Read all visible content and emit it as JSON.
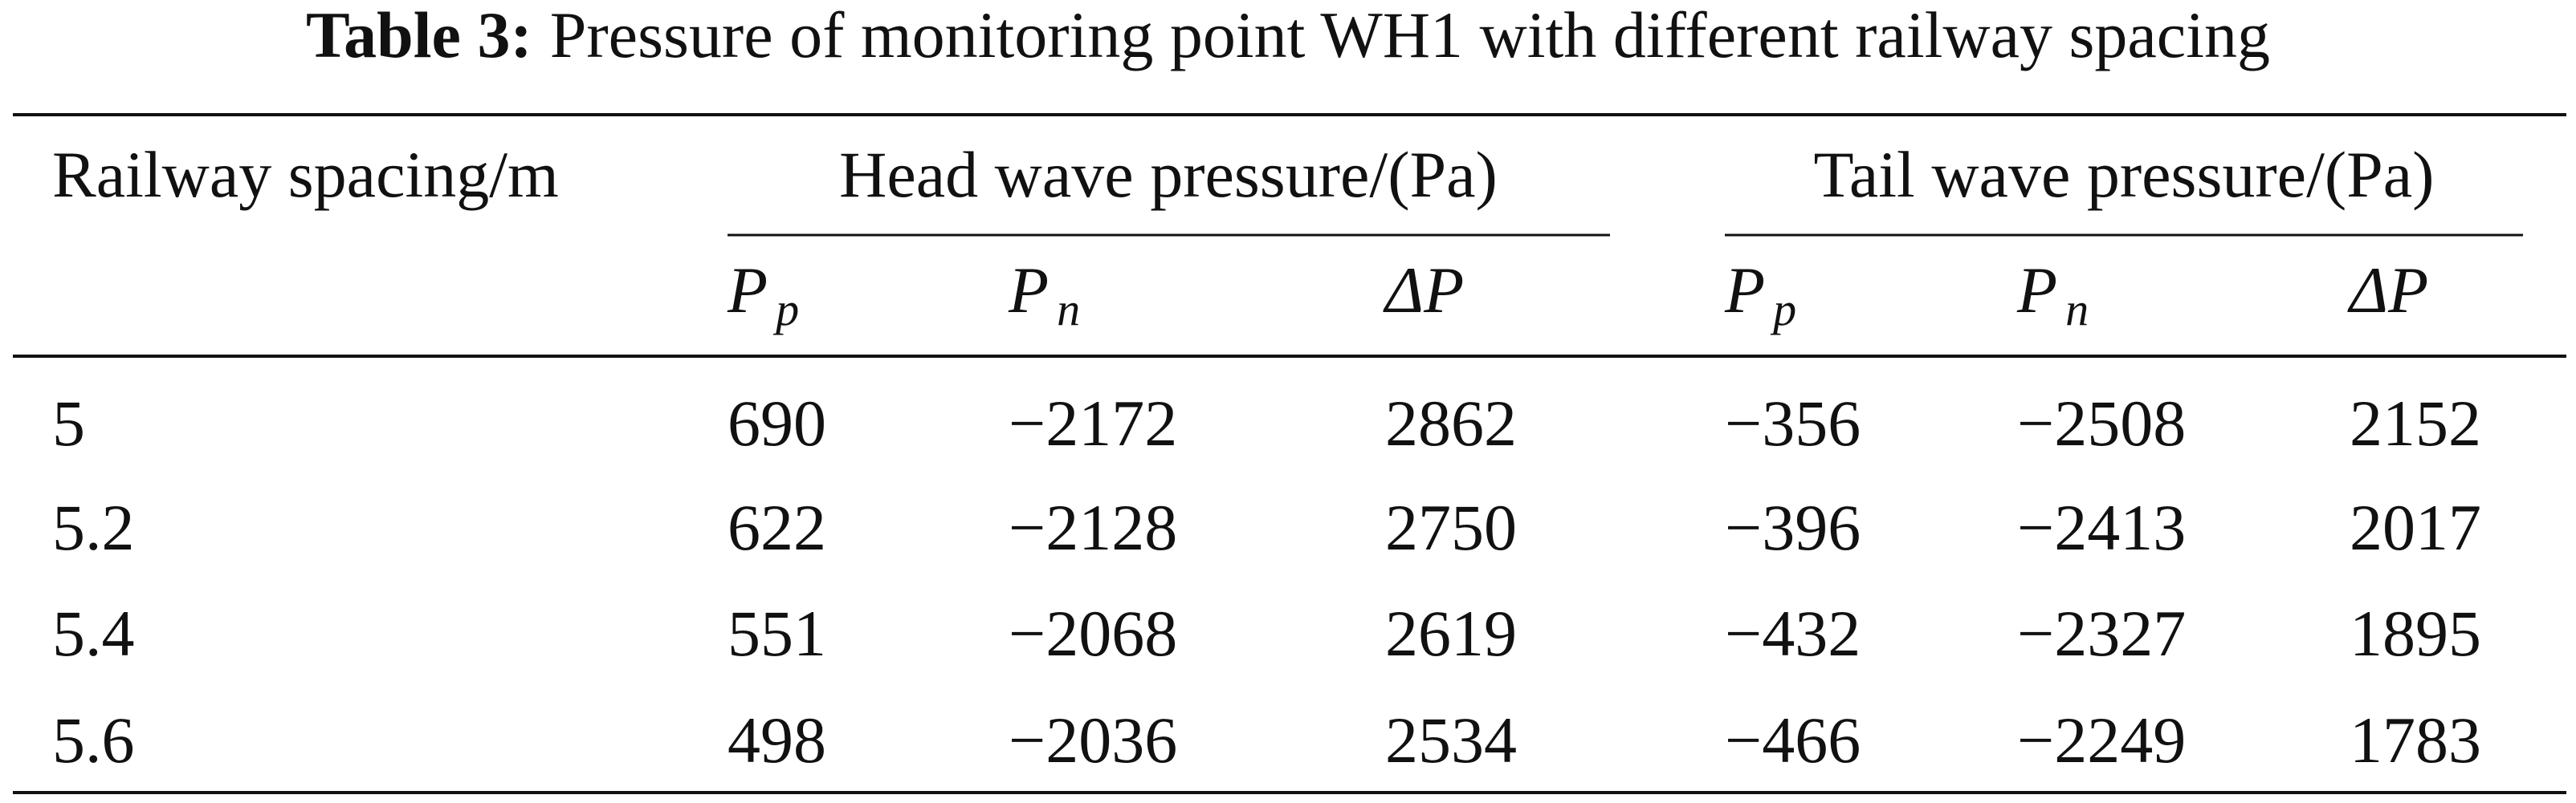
{
  "table": {
    "caption": {
      "label": "Table 3:",
      "text": "Pressure of monitoring point WH1 with different railway spacing"
    },
    "header": {
      "first": "Railway spacing/m",
      "groups": [
        "Head wave pressure/(Pa)",
        "Tail wave pressure/(Pa)"
      ]
    },
    "subheader": [
      {
        "symbol": "P",
        "subscript": "p"
      },
      {
        "symbol": "P",
        "subscript": "n"
      },
      {
        "symbol": "ΔP"
      },
      {
        "symbol": "P",
        "subscript": "p"
      },
      {
        "symbol": "P",
        "subscript": "n"
      },
      {
        "symbol": "ΔP"
      }
    ],
    "rows": [
      [
        "5",
        "690",
        "−2172",
        "2862",
        "−356",
        "−2508",
        "2152"
      ],
      [
        "5.2",
        "622",
        "−2128",
        "2750",
        "−396",
        "−2413",
        "2017"
      ],
      [
        "5.4",
        "551",
        "−2068",
        "2619",
        "−432",
        "−2327",
        "1895"
      ],
      [
        "5.6",
        "498",
        "−2036",
        "2534",
        "−466",
        "−2249",
        "1783"
      ]
    ]
  }
}
